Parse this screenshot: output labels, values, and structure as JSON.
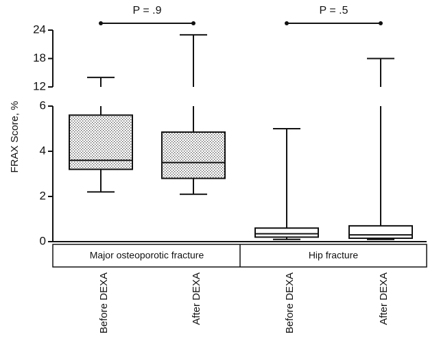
{
  "chart_data": {
    "type": "box",
    "y_label": "FRAX Score, %",
    "ylim": [
      0,
      24
    ],
    "yticks": [
      0,
      2,
      4,
      6,
      12,
      18,
      24
    ],
    "y_break": [
      6,
      12
    ],
    "categories": [
      "Before DEXA",
      "After DEXA",
      "Before DEXA",
      "After DEXA"
    ],
    "series": [
      {
        "name": "Major osteoporotic fracture",
        "fill": "dots",
        "boxes": [
          {
            "min": 2.2,
            "q1": 3.2,
            "median": 3.6,
            "q3": 5.6,
            "max": 14
          },
          {
            "min": 2.1,
            "q1": 2.8,
            "median": 3.5,
            "q3": 4.85,
            "max": 23
          }
        ]
      },
      {
        "name": "Hip fracture",
        "fill": "#ffffff",
        "boxes": [
          {
            "min": 0.1,
            "q1": 0.2,
            "median": 0.35,
            "q3": 0.6,
            "max": 5
          },
          {
            "min": 0.1,
            "q1": 0.15,
            "median": 0.3,
            "q3": 0.7,
            "max": 18
          }
        ]
      }
    ],
    "annotations": [
      "P = .9",
      "P = .5"
    ]
  }
}
